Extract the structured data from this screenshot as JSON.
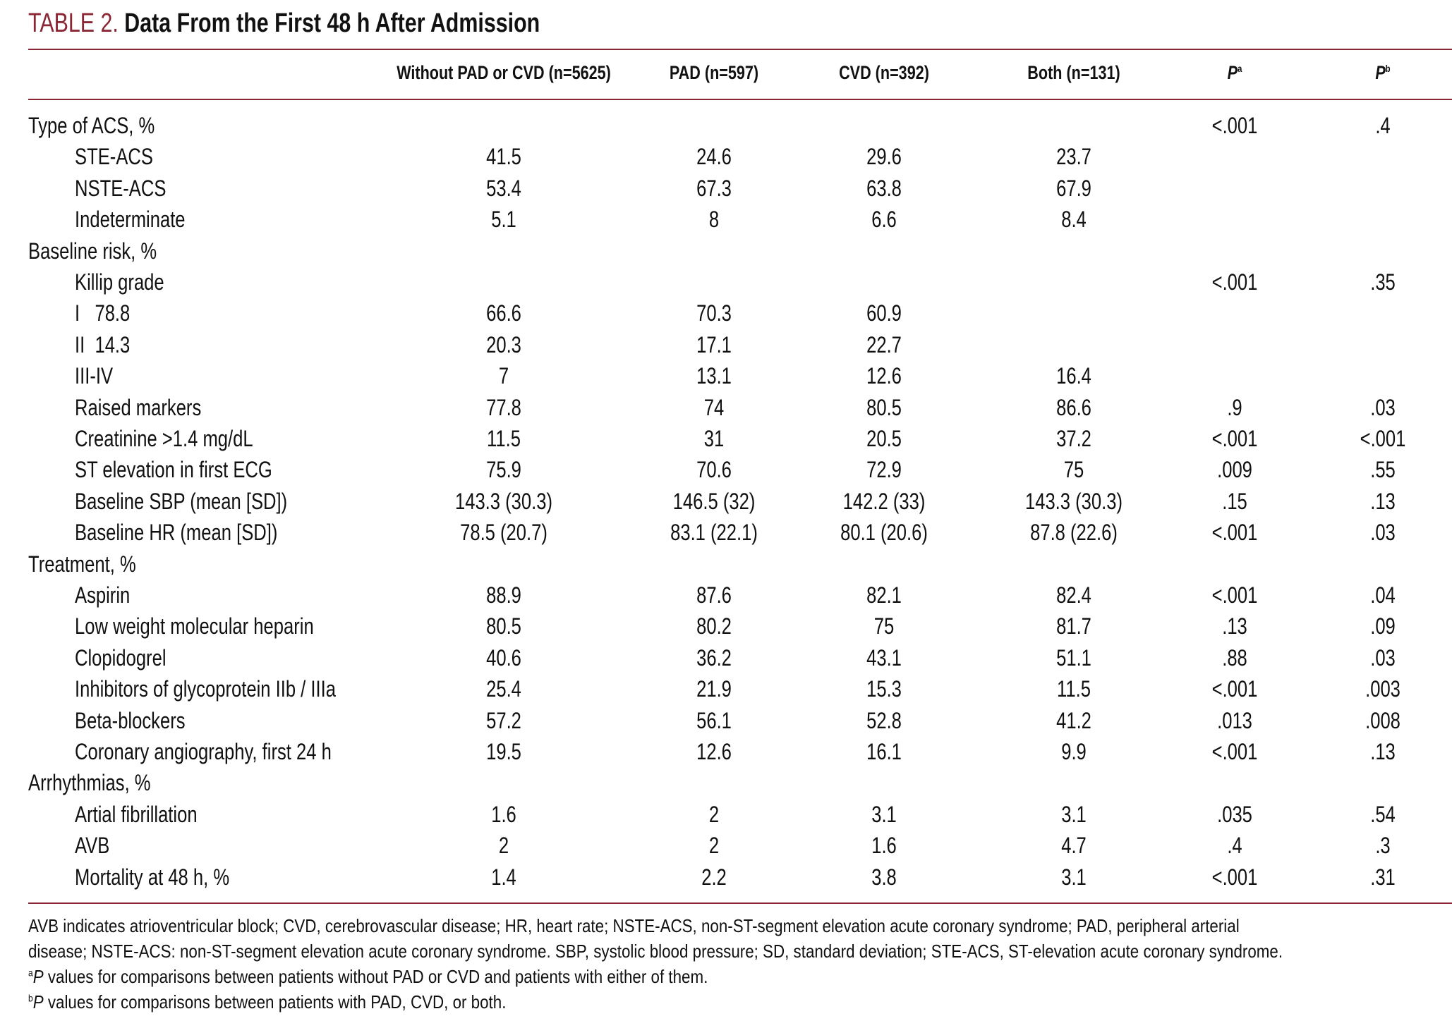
{
  "title": {
    "label": "TABLE 2.",
    "text": "Data From the First 48 h After Admission"
  },
  "columns": [
    "Without PAD or CVD (n=5625)",
    "PAD (n=597)",
    "CVD (n=392)",
    "Both (n=131)"
  ],
  "p_columns": [
    {
      "letter": "P",
      "sup": "a"
    },
    {
      "letter": "P",
      "sup": "b"
    }
  ],
  "accent_color": "#8b2635",
  "rows": [
    {
      "label": "Type of ACS, %",
      "indent": false,
      "values": [
        "",
        "",
        "",
        "",
        "<.001",
        ".4"
      ]
    },
    {
      "label": "STE-ACS",
      "indent": true,
      "values": [
        "41.5",
        "24.6",
        "29.6",
        "23.7",
        "",
        ""
      ]
    },
    {
      "label": "NSTE-ACS",
      "indent": true,
      "values": [
        "53.4",
        "67.3",
        "63.8",
        "67.9",
        "",
        ""
      ]
    },
    {
      "label": "Indeterminate",
      "indent": true,
      "values": [
        "5.1",
        "8",
        "6.6",
        "8.4",
        "",
        ""
      ]
    },
    {
      "label": "Baseline risk, %",
      "indent": false,
      "values": [
        "",
        "",
        "",
        "",
        "",
        ""
      ]
    },
    {
      "label": "Killip grade",
      "indent": true,
      "values": [
        "",
        "",
        "",
        "",
        "<.001",
        ".35"
      ]
    },
    {
      "label": "I   78.8",
      "indent": true,
      "values": [
        "66.6",
        "70.3",
        "60.9",
        "",
        "",
        ""
      ]
    },
    {
      "label": "II  14.3",
      "indent": true,
      "values": [
        "20.3",
        "17.1",
        "22.7",
        "",
        "",
        ""
      ]
    },
    {
      "label": "III-IV",
      "indent": true,
      "values": [
        "7",
        "13.1",
        "12.6",
        "16.4",
        "",
        ""
      ]
    },
    {
      "label": "Raised markers",
      "indent": true,
      "values": [
        "77.8",
        "74",
        "80.5",
        "86.6",
        ".9",
        ".03"
      ]
    },
    {
      "label": "Creatinine >1.4 mg/dL",
      "indent": true,
      "values": [
        "11.5",
        "31",
        "20.5",
        "37.2",
        "<.001",
        "<.001"
      ]
    },
    {
      "label": "ST elevation in first ECG",
      "indent": true,
      "values": [
        "75.9",
        "70.6",
        "72.9",
        "75",
        ".009",
        ".55"
      ]
    },
    {
      "label": "Baseline SBP (mean [SD])",
      "indent": true,
      "values": [
        "143.3 (30.3)",
        "146.5 (32)",
        "142.2 (33)",
        "143.3 (30.3)",
        ".15",
        ".13"
      ]
    },
    {
      "label": "Baseline HR (mean [SD])",
      "indent": true,
      "values": [
        "78.5 (20.7)",
        "83.1 (22.1)",
        "80.1 (20.6)",
        "87.8 (22.6)",
        "<.001",
        ".03"
      ]
    },
    {
      "label": "Treatment, %",
      "indent": false,
      "values": [
        "",
        "",
        "",
        "",
        "",
        ""
      ]
    },
    {
      "label": "Aspirin",
      "indent": true,
      "values": [
        "88.9",
        "87.6",
        "82.1",
        "82.4",
        "<.001",
        ".04"
      ]
    },
    {
      "label": "Low weight molecular heparin",
      "indent": true,
      "values": [
        "80.5",
        "80.2",
        "75",
        "81.7",
        ".13",
        ".09"
      ]
    },
    {
      "label": "Clopidogrel",
      "indent": true,
      "values": [
        "40.6",
        "36.2",
        "43.1",
        "51.1",
        ".88",
        ".03"
      ]
    },
    {
      "label": "Inhibitors of glycoprotein IIb / IIIa",
      "indent": true,
      "values": [
        "25.4",
        "21.9",
        "15.3",
        "11.5",
        "<.001",
        ".003"
      ]
    },
    {
      "label": "Beta-blockers",
      "indent": true,
      "values": [
        "57.2",
        "56.1",
        "52.8",
        "41.2",
        ".013",
        ".008"
      ]
    },
    {
      "label": "Coronary angiography, first 24 h",
      "indent": true,
      "values": [
        "19.5",
        "12.6",
        "16.1",
        "9.9",
        "<.001",
        ".13"
      ]
    },
    {
      "label": "Arrhythmias, %",
      "indent": false,
      "values": [
        "",
        "",
        "",
        "",
        "",
        ""
      ]
    },
    {
      "label": "Artial fibrillation",
      "indent": true,
      "values": [
        "1.6",
        "2",
        "3.1",
        "3.1",
        ".035",
        ".54"
      ]
    },
    {
      "label": "AVB",
      "indent": true,
      "values": [
        "2",
        "2",
        "1.6",
        "4.7",
        ".4",
        ".3"
      ]
    },
    {
      "label": "Mortality at 48 h, %",
      "indent": true,
      "values": [
        "1.4",
        "2.2",
        "3.8",
        "3.1",
        "<.001",
        ".31"
      ]
    }
  ],
  "footnotes": {
    "abbrev_1": "AVB indicates atrioventricular block; CVD, cerebrovascular disease; HR, heart rate; NSTE-ACS, non-ST-segment elevation acute coronary syndrome; PAD, peripheral arterial",
    "abbrev_2": "disease; NSTE-ACS: non-ST-segment elevation acute coronary syndrome. SBP, systolic blood pressure; SD, standard deviation; STE-ACS, ST-elevation acute coronary syndrome.",
    "a": {
      "mark": "a",
      "p": "P",
      "text": " values for comparisons between patients without PAD or CVD and patients with either of them."
    },
    "b": {
      "mark": "b",
      "p": "P",
      "text": " values for comparisons between patients with PAD, CVD, or both."
    }
  }
}
